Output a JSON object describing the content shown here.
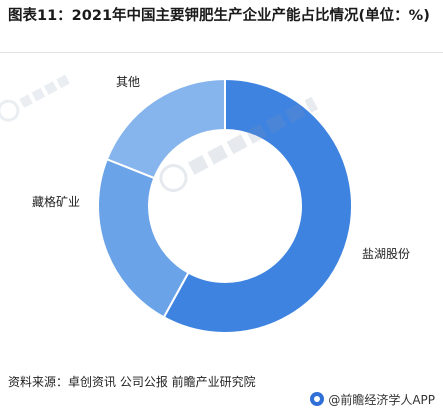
{
  "title": "图表11：2021年中国主要钾肥生产企业产能占比情况(单位：%)",
  "source": "资料来源：卓创资讯 公司公报 前瞻产业研究院",
  "logo_text": "@前瞻经济学人APP",
  "chart_data": {
    "type": "pie",
    "donut": true,
    "title": "图表11：2021年中国主要钾肥生产企业产能占比情况(单位：%)",
    "unit": "%",
    "categories": [
      "盐湖股份",
      "藏格矿业",
      "其他"
    ],
    "values": [
      58,
      23,
      19
    ],
    "colors": [
      "#3f83e1",
      "#6aa3e8",
      "#86b4ec"
    ],
    "legend": "none"
  }
}
